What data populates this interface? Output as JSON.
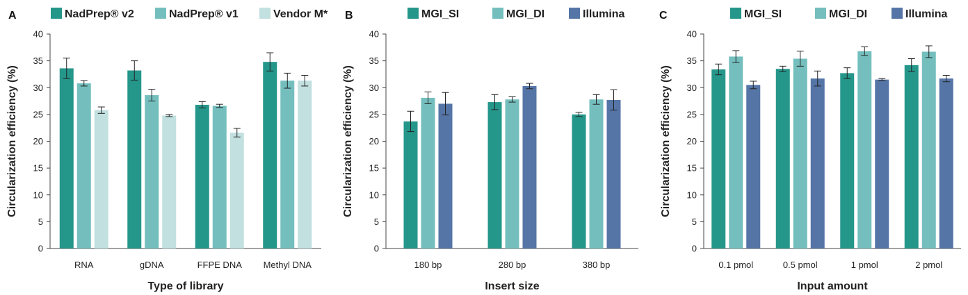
{
  "chart_data": [
    {
      "panel": "A",
      "type": "bar",
      "title": "",
      "xlabel": "Type of library",
      "ylabel": "Circularization efficiency (%)",
      "ylim": [
        0,
        40
      ],
      "yticks": [
        0,
        5,
        10,
        15,
        20,
        25,
        30,
        35,
        40
      ],
      "legend_position": "top",
      "categories": [
        "RNA",
        "gDNA",
        "FFPE DNA",
        "Methyl DNA"
      ],
      "series": [
        {
          "name": "NadPrep® v2",
          "color": "#25968a",
          "values": [
            33.6,
            33.2,
            26.8,
            34.8
          ],
          "errors": [
            1.9,
            1.8,
            0.6,
            1.7
          ]
        },
        {
          "name": "NadPrep® v1",
          "color": "#74bfbe",
          "values": [
            30.8,
            28.6,
            26.6,
            31.3
          ],
          "errors": [
            0.5,
            1.1,
            0.3,
            1.4
          ]
        },
        {
          "name": "Vendor M*",
          "color": "#c1e0df",
          "values": [
            25.8,
            24.8,
            21.6,
            31.3
          ],
          "errors": [
            0.6,
            0.2,
            0.8,
            1.0
          ]
        }
      ]
    },
    {
      "panel": "B",
      "type": "bar",
      "title": "",
      "xlabel": "Insert size",
      "ylabel": "Circularization efficiency (%)",
      "ylim": [
        0,
        40
      ],
      "yticks": [
        0,
        5,
        10,
        15,
        20,
        25,
        30,
        35,
        40
      ],
      "legend_position": "top",
      "categories": [
        "180 bp",
        "280 bp",
        "380 bp"
      ],
      "series": [
        {
          "name": "MGI_SI",
          "color": "#25968a",
          "values": [
            23.7,
            27.3,
            25.0
          ],
          "errors": [
            1.9,
            1.4,
            0.4
          ]
        },
        {
          "name": "MGI_DI",
          "color": "#74bfbe",
          "values": [
            28.1,
            27.8,
            27.8
          ],
          "errors": [
            1.1,
            0.5,
            0.9
          ]
        },
        {
          "name": "Illumina",
          "color": "#5575a7",
          "values": [
            27.0,
            30.3,
            27.7
          ],
          "errors": [
            2.1,
            0.5,
            1.9
          ]
        }
      ]
    },
    {
      "panel": "C",
      "type": "bar",
      "title": "",
      "xlabel": "Input amount",
      "ylabel": "Circularization efficiency (%)",
      "ylim": [
        0,
        40
      ],
      "yticks": [
        0,
        5,
        10,
        15,
        20,
        25,
        30,
        35,
        40
      ],
      "legend_position": "top",
      "categories": [
        "0.1 pmol",
        "0.5 pmol",
        "1 pmol",
        "2 pmol"
      ],
      "series": [
        {
          "name": "MGI_SI",
          "color": "#25968a",
          "values": [
            33.4,
            33.5,
            32.7,
            34.2
          ],
          "errors": [
            1.0,
            0.5,
            1.0,
            1.2
          ]
        },
        {
          "name": "MGI_DI",
          "color": "#74bfbe",
          "values": [
            35.8,
            35.4,
            36.8,
            36.7
          ],
          "errors": [
            1.1,
            1.4,
            0.8,
            1.1
          ]
        },
        {
          "name": "Illumina",
          "color": "#5575a7",
          "values": [
            30.5,
            31.7,
            31.5,
            31.7
          ],
          "errors": [
            0.7,
            1.4,
            0.2,
            0.6
          ]
        }
      ]
    }
  ]
}
